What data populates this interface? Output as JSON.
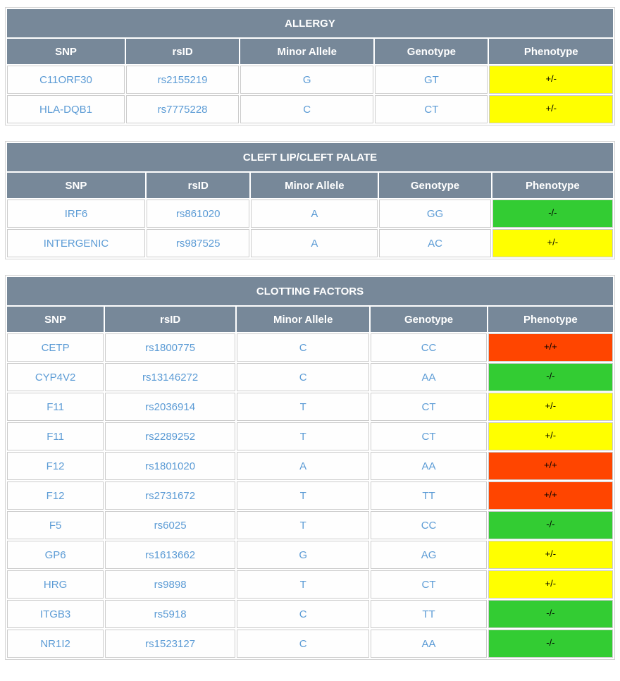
{
  "colors": {
    "header_bg": "#778899",
    "header_text": "#ffffff",
    "cell_text": "#5b9bd5",
    "cell_border": "#cccccc",
    "phenotype_text": "#000000",
    "phenotype": {
      "+/-": "#ffff00",
      "-/-": "#33cc33",
      "+/+": "#ff4500"
    }
  },
  "columns": [
    "SNP",
    "rsID",
    "Minor Allele",
    "Genotype",
    "Phenotype"
  ],
  "tables": [
    {
      "title": "ALLERGY",
      "rows": [
        {
          "snp": "C11ORF30",
          "rsid": "rs2155219",
          "minor_allele": "G",
          "genotype": "GT",
          "phenotype": "+/-"
        },
        {
          "snp": "HLA-DQB1",
          "rsid": "rs7775228",
          "minor_allele": "C",
          "genotype": "CT",
          "phenotype": "+/-"
        }
      ]
    },
    {
      "title": "CLEFT LIP/CLEFT PALATE",
      "rows": [
        {
          "snp": "IRF6",
          "rsid": "rs861020",
          "minor_allele": "A",
          "genotype": "GG",
          "phenotype": "-/-"
        },
        {
          "snp": "INTERGENIC",
          "rsid": "rs987525",
          "minor_allele": "A",
          "genotype": "AC",
          "phenotype": "+/-"
        }
      ]
    },
    {
      "title": "CLOTTING FACTORS",
      "rows": [
        {
          "snp": "CETP",
          "rsid": "rs1800775",
          "minor_allele": "C",
          "genotype": "CC",
          "phenotype": "+/+"
        },
        {
          "snp": "CYP4V2",
          "rsid": "rs13146272",
          "minor_allele": "C",
          "genotype": "AA",
          "phenotype": "-/-"
        },
        {
          "snp": "F11",
          "rsid": "rs2036914",
          "minor_allele": "T",
          "genotype": "CT",
          "phenotype": "+/-"
        },
        {
          "snp": "F11",
          "rsid": "rs2289252",
          "minor_allele": "T",
          "genotype": "CT",
          "phenotype": "+/-"
        },
        {
          "snp": "F12",
          "rsid": "rs1801020",
          "minor_allele": "A",
          "genotype": "AA",
          "phenotype": "+/+"
        },
        {
          "snp": "F12",
          "rsid": "rs2731672",
          "minor_allele": "T",
          "genotype": "TT",
          "phenotype": "+/+"
        },
        {
          "snp": "F5",
          "rsid": "rs6025",
          "minor_allele": "T",
          "genotype": "CC",
          "phenotype": "-/-"
        },
        {
          "snp": "GP6",
          "rsid": "rs1613662",
          "minor_allele": "G",
          "genotype": "AG",
          "phenotype": "+/-"
        },
        {
          "snp": "HRG",
          "rsid": "rs9898",
          "minor_allele": "T",
          "genotype": "CT",
          "phenotype": "+/-"
        },
        {
          "snp": "ITGB3",
          "rsid": "rs5918",
          "minor_allele": "C",
          "genotype": "TT",
          "phenotype": "-/-"
        },
        {
          "snp": "NR1I2",
          "rsid": "rs1523127",
          "minor_allele": "C",
          "genotype": "AA",
          "phenotype": "-/-"
        }
      ]
    }
  ]
}
